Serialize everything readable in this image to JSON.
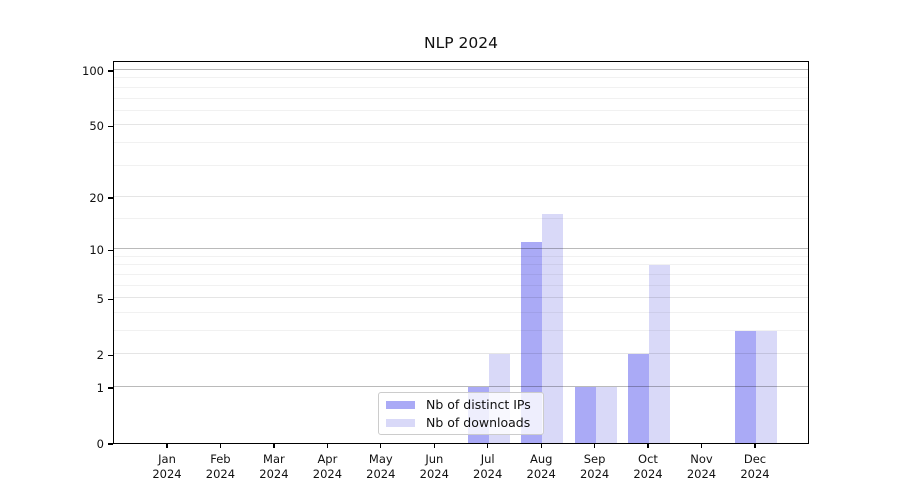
{
  "chart_data": {
    "type": "bar",
    "title": "NLP 2024",
    "categories": [
      "Jan",
      "Feb",
      "Mar",
      "Apr",
      "May",
      "Jun",
      "Jul",
      "Aug",
      "Sep",
      "Oct",
      "Nov",
      "Dec"
    ],
    "x_tick_second_line": "2024",
    "series": [
      {
        "name": "Nb of distinct IPs",
        "color": "#aaaaf6",
        "values": [
          0,
          0,
          0,
          0,
          0,
          0,
          1,
          11,
          1,
          2,
          0,
          3
        ]
      },
      {
        "name": "Nb of downloads",
        "color": "#d9d9f8",
        "values": [
          0,
          0,
          0,
          0,
          0,
          0,
          2,
          16,
          1,
          8,
          0,
          3
        ]
      }
    ],
    "yscale": "log1p",
    "ylim": [
      0,
      113
    ],
    "yticks": [
      0,
      1,
      2,
      5,
      10,
      20,
      50,
      100
    ],
    "major_yticks": [
      1,
      10,
      100
    ],
    "minor_yticks": [
      3,
      4,
      6,
      7,
      8,
      9,
      15,
      30,
      40,
      60,
      70,
      80,
      90
    ],
    "grid": true,
    "legend_position": "lower center"
  }
}
